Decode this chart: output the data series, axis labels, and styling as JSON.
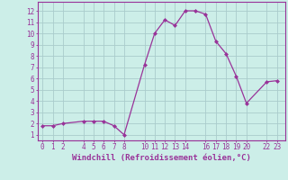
{
  "x": [
    0,
    1,
    2,
    4,
    5,
    6,
    7,
    8,
    10,
    11,
    12,
    13,
    14,
    15,
    16,
    17,
    18,
    19,
    20,
    22,
    23
  ],
  "y": [
    1.8,
    1.8,
    2.0,
    2.2,
    2.2,
    2.2,
    1.8,
    1.0,
    7.2,
    10.0,
    11.2,
    10.7,
    12.0,
    12.0,
    11.7,
    9.3,
    8.2,
    6.2,
    3.8,
    5.7,
    5.8
  ],
  "line_color": "#993399",
  "marker": "D",
  "marker_size": 2.0,
  "linewidth": 0.9,
  "bg_color": "#cceee8",
  "grid_color": "#aacccc",
  "xlabel": "Windchill (Refroidissement éolien,°C)",
  "xlabel_fontsize": 6.5,
  "xticks": [
    0,
    1,
    2,
    4,
    5,
    6,
    7,
    8,
    10,
    11,
    12,
    13,
    14,
    16,
    17,
    18,
    19,
    20,
    22,
    23
  ],
  "xtick_labels": [
    "0",
    "1",
    "2",
    "4",
    "5",
    "6",
    "7",
    "8",
    "10",
    "11",
    "12",
    "13",
    "14",
    "16",
    "17",
    "18",
    "19",
    "20",
    "22",
    "23"
  ],
  "yticks": [
    1,
    2,
    3,
    4,
    5,
    6,
    7,
    8,
    9,
    10,
    11,
    12
  ],
  "ylim": [
    0.5,
    12.8
  ],
  "xlim": [
    -0.5,
    23.8
  ],
  "tick_color": "#993399",
  "tick_fontsize": 5.5,
  "spine_color": "#993399"
}
